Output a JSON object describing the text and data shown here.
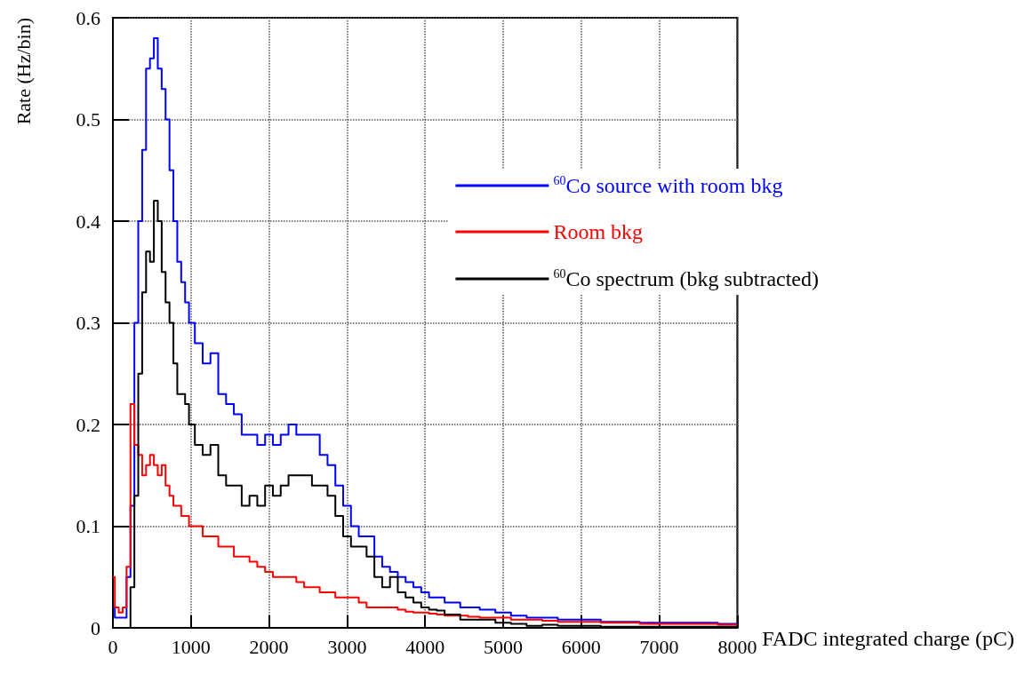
{
  "chart_data": {
    "type": "step",
    "xlabel": "FADC integrated charge (pC)",
    "ylabel": "Rate (Hz/bin)",
    "x": [
      0,
      50,
      100,
      150,
      200,
      250,
      300,
      350,
      400,
      450,
      500,
      550,
      600,
      650,
      700,
      750,
      800,
      850,
      900,
      950,
      1000,
      1100,
      1200,
      1300,
      1400,
      1500,
      1600,
      1700,
      1800,
      1900,
      2000,
      2100,
      2200,
      2300,
      2400,
      2500,
      2600,
      2700,
      2800,
      2900,
      3000,
      3100,
      3200,
      3300,
      3400,
      3500,
      3600,
      3700,
      3800,
      3900,
      4000,
      4100,
      4200,
      4300,
      4400,
      4500,
      4600,
      4800,
      5000,
      5200,
      5400,
      5600,
      5800,
      6000,
      6500,
      7000,
      7500,
      8000
    ],
    "series": [
      {
        "name": "$^{60}$Co source with room bkg",
        "color": "#0000ff",
        "values": [
          0.02,
          0.01,
          0.01,
          0.01,
          0.05,
          0.12,
          0.3,
          0.4,
          0.47,
          0.55,
          0.56,
          0.58,
          0.55,
          0.53,
          0.5,
          0.45,
          0.4,
          0.36,
          0.34,
          0.32,
          0.3,
          0.28,
          0.26,
          0.27,
          0.23,
          0.22,
          0.21,
          0.19,
          0.19,
          0.18,
          0.19,
          0.18,
          0.19,
          0.2,
          0.19,
          0.19,
          0.19,
          0.17,
          0.16,
          0.14,
          0.12,
          0.1,
          0.09,
          0.09,
          0.07,
          0.06,
          0.055,
          0.05,
          0.045,
          0.04,
          0.035,
          0.03,
          0.03,
          0.025,
          0.025,
          0.02,
          0.02,
          0.018,
          0.015,
          0.012,
          0.01,
          0.01,
          0.008,
          0.008,
          0.006,
          0.005,
          0.005,
          0.004
        ]
      },
      {
        "name": "Room bkg",
        "color": "#ff0000",
        "values": [
          0.05,
          0.02,
          0.015,
          0.02,
          0.06,
          0.22,
          0.18,
          0.17,
          0.15,
          0.16,
          0.17,
          0.16,
          0.15,
          0.16,
          0.14,
          0.13,
          0.12,
          0.12,
          0.11,
          0.11,
          0.1,
          0.1,
          0.09,
          0.09,
          0.08,
          0.08,
          0.07,
          0.07,
          0.065,
          0.06,
          0.055,
          0.05,
          0.05,
          0.05,
          0.045,
          0.04,
          0.04,
          0.035,
          0.035,
          0.03,
          0.03,
          0.03,
          0.025,
          0.02,
          0.02,
          0.02,
          0.02,
          0.018,
          0.016,
          0.015,
          0.015,
          0.014,
          0.013,
          0.012,
          0.012,
          0.012,
          0.011,
          0.01,
          0.01,
          0.008,
          0.008,
          0.007,
          0.006,
          0.006,
          0.005,
          0.004,
          0.004,
          0.003
        ]
      },
      {
        "name": "$^{60}$Co spectrum (bkg subtracted)",
        "color": "#000000",
        "values": [
          0,
          0,
          0,
          0,
          0,
          0.04,
          0.13,
          0.25,
          0.33,
          0.37,
          0.36,
          0.42,
          0.4,
          0.35,
          0.32,
          0.3,
          0.26,
          0.23,
          0.23,
          0.22,
          0.2,
          0.18,
          0.17,
          0.18,
          0.15,
          0.14,
          0.14,
          0.12,
          0.13,
          0.12,
          0.14,
          0.13,
          0.14,
          0.15,
          0.15,
          0.15,
          0.14,
          0.14,
          0.13,
          0.11,
          0.09,
          0.08,
          0.08,
          0.07,
          0.05,
          0.04,
          0.05,
          0.035,
          0.03,
          0.025,
          0.02,
          0.018,
          0.017,
          0.013,
          0.013,
          0.008,
          0.008,
          0.008,
          0.005,
          0.004,
          0.002,
          0.003,
          0.002,
          0.002,
          0.001,
          0.001,
          0.001,
          0.001
        ]
      }
    ],
    "xlim": [
      0,
      8000
    ],
    "xticks": [
      0,
      1000,
      2000,
      3000,
      4000,
      5000,
      6000,
      7000,
      8000
    ],
    "ylim": [
      0,
      0.6
    ],
    "yticks": [
      0,
      0.1,
      0.2,
      0.3,
      0.4,
      0.5,
      0.6
    ],
    "grid": true,
    "legend": "right",
    "marker": "none",
    "line_style": "solid"
  }
}
